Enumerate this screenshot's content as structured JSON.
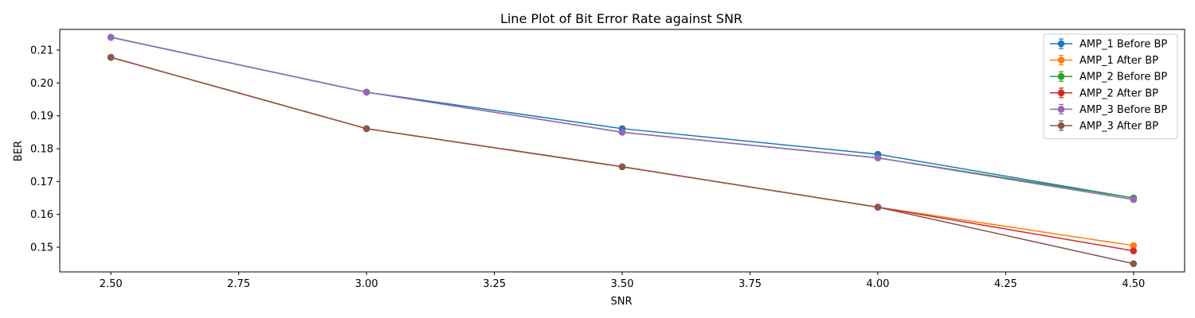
{
  "chart_data": {
    "type": "line",
    "title": "Line Plot of Bit Error Rate against SNR",
    "xlabel": "SNR",
    "ylabel": "BER",
    "xlim": [
      2.4,
      4.6
    ],
    "ylim": [
      0.1425,
      0.2163
    ],
    "x": [
      2.5,
      3.0,
      3.5,
      4.0,
      4.5
    ],
    "x_ticks": [
      2.5,
      2.75,
      3.0,
      3.25,
      3.5,
      3.75,
      4.0,
      4.25,
      4.5
    ],
    "x_tick_labels": [
      "2.50",
      "2.75",
      "3.00",
      "3.25",
      "3.50",
      "3.75",
      "4.00",
      "4.25",
      "4.50"
    ],
    "y_ticks": [
      0.15,
      0.16,
      0.17,
      0.18,
      0.19,
      0.2,
      0.21
    ],
    "y_tick_labels": [
      "0.15",
      "0.16",
      "0.17",
      "0.18",
      "0.19",
      "0.20",
      "0.21"
    ],
    "grid": false,
    "legend_position": "top-right",
    "series": [
      {
        "name": "AMP_1 Before BP",
        "color": "#1f77b4",
        "values": [
          0.2139,
          0.1972,
          0.1861,
          0.1783,
          0.165
        ]
      },
      {
        "name": "AMP_1 After BP",
        "color": "#ff7f0e",
        "values": [
          0.2078,
          0.1861,
          0.1745,
          0.1622,
          0.1505
        ]
      },
      {
        "name": "AMP_2 Before BP",
        "color": "#2ca02c",
        "values": [
          0.2139,
          0.1972,
          0.185,
          0.1772,
          0.165
        ]
      },
      {
        "name": "AMP_2 After BP",
        "color": "#d62728",
        "values": [
          0.2078,
          0.1861,
          0.1745,
          0.1622,
          0.1489
        ]
      },
      {
        "name": "AMP_3 Before BP",
        "color": "#9467bd",
        "values": [
          0.2139,
          0.1972,
          0.185,
          0.1772,
          0.1645
        ]
      },
      {
        "name": "AMP_3 After BP",
        "color": "#8c564b",
        "values": [
          0.2078,
          0.1861,
          0.1745,
          0.1622,
          0.145
        ]
      }
    ]
  }
}
